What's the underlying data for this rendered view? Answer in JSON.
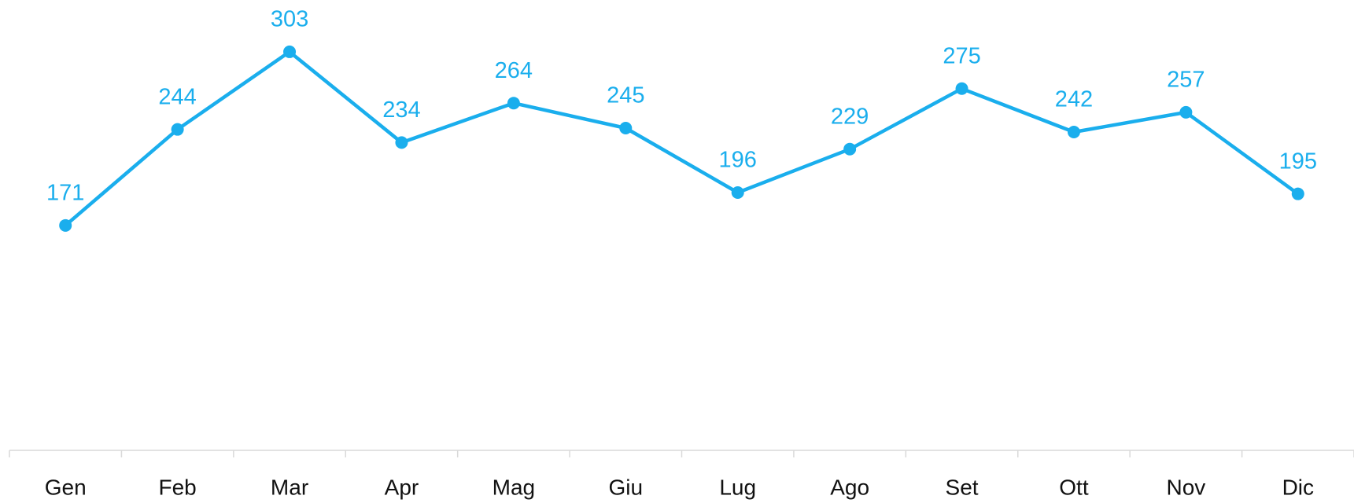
{
  "chart_data": {
    "type": "line",
    "categories": [
      "Gen",
      "Feb",
      "Mar",
      "Apr",
      "Mag",
      "Giu",
      "Lug",
      "Ago",
      "Set",
      "Ott",
      "Nov",
      "Dic"
    ],
    "values": [
      171,
      244,
      303,
      234,
      264,
      245,
      196,
      229,
      275,
      242,
      257,
      195
    ],
    "color": "#1aaeed",
    "ylim": [
      0,
      340
    ],
    "grid": false
  }
}
